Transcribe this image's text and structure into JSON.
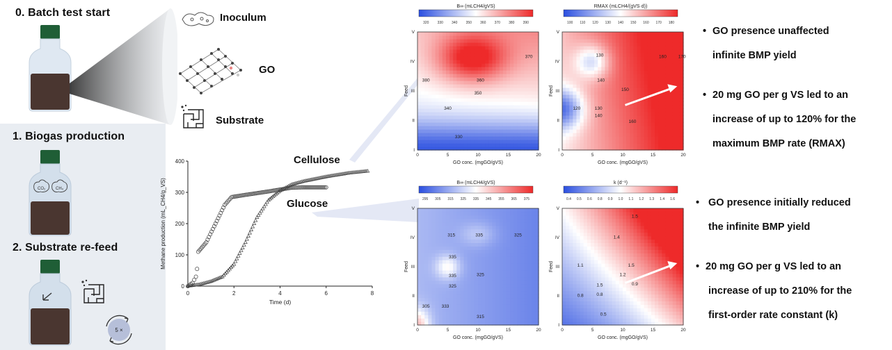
{
  "steps": {
    "s0": "0. Batch test start",
    "s1": "1. Biogas production",
    "s2": "2. Substrate re-feed",
    "refeed_badge": "5 ×"
  },
  "components": {
    "inoculum": "Inoculum",
    "go": "GO",
    "substrate": "Substrate"
  },
  "gases": {
    "g1": "CO₂",
    "g2": "CH₄"
  },
  "chart_data": {
    "type": "scatter",
    "xlabel": "Time (d)",
    "ylabel": "Methane production (mL_CH4/g_VS)",
    "xlim": [
      0,
      8
    ],
    "ylim": [
      0,
      400
    ],
    "xticks": [
      "0",
      "2",
      "4",
      "6",
      "8"
    ],
    "yticks": [
      "0",
      "100",
      "200",
      "300",
      "400"
    ],
    "series": [
      {
        "name": "Glucose",
        "points": [
          [
            0,
            0
          ],
          [
            0.2,
            10
          ],
          [
            0.35,
            30
          ],
          [
            0.4,
            55
          ],
          [
            0.45,
            110
          ],
          [
            0.8,
            140
          ],
          [
            1.2,
            200
          ],
          [
            1.6,
            260
          ],
          [
            1.9,
            285
          ],
          [
            2.5,
            292
          ],
          [
            3.5,
            303
          ],
          [
            4.5,
            315
          ],
          [
            5.0,
            316
          ],
          [
            6.0,
            316
          ]
        ]
      },
      {
        "name": "Cellulose",
        "points": [
          [
            0,
            0
          ],
          [
            0.5,
            5
          ],
          [
            1.0,
            15
          ],
          [
            1.5,
            30
          ],
          [
            2.0,
            70
          ],
          [
            2.5,
            140
          ],
          [
            3.0,
            220
          ],
          [
            3.5,
            275
          ],
          [
            4.0,
            305
          ],
          [
            4.5,
            325
          ],
          [
            5.0,
            335
          ],
          [
            6.0,
            350
          ],
          [
            7.0,
            362
          ],
          [
            7.8,
            368
          ]
        ]
      }
    ]
  },
  "heatmaps": [
    {
      "colorbar_label": "B∞ (mLCH4/gVS)",
      "ticks": [
        "320",
        "330",
        "340",
        "350",
        "360",
        "370",
        "380",
        "390"
      ],
      "xlabel": "GO conc. (mgGO/gVS)",
      "ylabel": "Feed",
      "xticks": [
        "0",
        "5",
        "10",
        "15",
        "20"
      ],
      "yticks": [
        "I",
        "II",
        "III",
        "IV",
        "V"
      ],
      "contours": [
        "370",
        "360",
        "350",
        "340",
        "330",
        "380"
      ]
    },
    {
      "colorbar_label": "RMAX (mLCH4/(gVS·d))",
      "ticks": [
        "100",
        "110",
        "120",
        "130",
        "140",
        "150",
        "160",
        "170",
        "180"
      ],
      "xlabel": "GO conc. (mgGO/gVS)",
      "ylabel": "Feed",
      "xticks": [
        "0",
        "5",
        "10",
        "15",
        "20"
      ],
      "yticks": [
        "I",
        "II",
        "III",
        "IV",
        "V"
      ],
      "contours": [
        "130",
        "160",
        "170",
        "140",
        "150",
        "120",
        "130",
        "140",
        "160"
      ]
    },
    {
      "colorbar_label": "B∞ (mLCH4/gVS)",
      "ticks": [
        "295",
        "305",
        "315",
        "325",
        "335",
        "345",
        "355",
        "365",
        "375"
      ],
      "xlabel": "GO conc. (mgGO/gVS)",
      "ylabel": "Feed",
      "xticks": [
        "0",
        "5",
        "10",
        "15",
        "20"
      ],
      "yticks": [
        "I",
        "II",
        "III",
        "IV",
        "V"
      ],
      "contours": [
        "315",
        "335",
        "325",
        "335",
        "335",
        "325",
        "325",
        "305",
        "333",
        "315"
      ]
    },
    {
      "colorbar_label": "k (d⁻¹)",
      "ticks": [
        "0.4",
        "0.5",
        "0.6",
        "0.8",
        "0.9",
        "1.0",
        "1.1",
        "1.2",
        "1.3",
        "1.4",
        "1.6"
      ],
      "xlabel": "GO conc. (mgGO/gVS)",
      "ylabel": "Feed",
      "xticks": [
        "0",
        "5",
        "10",
        "15",
        "20"
      ],
      "yticks": [
        "I",
        "II",
        "III",
        "IV",
        "V"
      ],
      "contours": [
        "1.5",
        "1.4",
        "1.5",
        "1.1",
        "1.2",
        "1.5",
        "0.9",
        "0.8",
        "0.8",
        "0.5"
      ]
    }
  ],
  "curve_labels": {
    "cellulose": "Cellulose",
    "glucose": "Glucose"
  },
  "bullets": {
    "cellulose": [
      {
        "lines": [
          "GO presence unaffected",
          "infinite BMP yield"
        ]
      },
      {
        "lines": [
          "20 mg GO per g VS led to an",
          "increase of up to 120% for the",
          "maximum BMP rate (RMAX)"
        ]
      }
    ],
    "glucose": [
      {
        "lines": [
          " GO presence initially reduced",
          "the infinite BMP yield"
        ]
      },
      {
        "lines": [
          "20 mg GO per g VS led to an",
          "increase of up to 210% for the",
          "first-order rate constant (k)"
        ]
      }
    ]
  },
  "colors": {
    "bottle_cap": "#1f5e36",
    "bottle_liquid": "#4a3630",
    "panel": "#e9edf2",
    "low": "#2b4fe0",
    "high": "#ee2a2a"
  }
}
